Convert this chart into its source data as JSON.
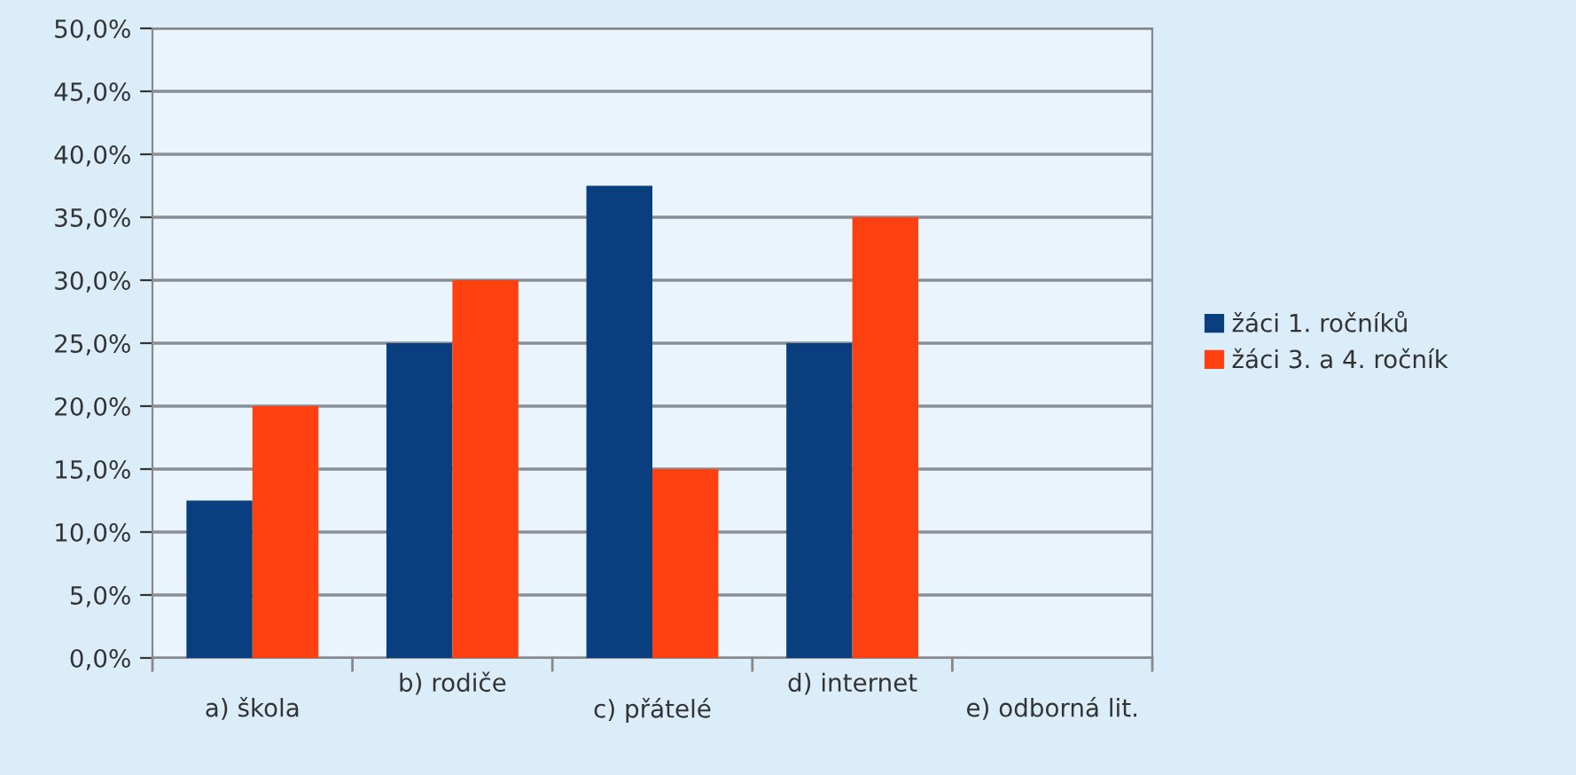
{
  "chart_data": {
    "type": "bar",
    "categories": [
      "a) škola",
      "b) rodiče",
      "c) přátelé",
      "d) internet",
      "e) odborná lit."
    ],
    "series": [
      {
        "name": "žáci 1. ročníků",
        "color": "#0a3f7f",
        "values": [
          12.5,
          25,
          37.5,
          25,
          null
        ]
      },
      {
        "name": "žáci 3. a 4. ročník",
        "color": "#ff4010",
        "values": [
          20,
          30,
          15,
          35,
          null
        ]
      }
    ],
    "ylim": [
      0,
      50
    ],
    "yticks": [
      {
        "value": 0,
        "label": "0,0%"
      },
      {
        "value": 5,
        "label": "5,0%"
      },
      {
        "value": 10,
        "label": "10,0%"
      },
      {
        "value": 15,
        "label": "15,0%"
      },
      {
        "value": 20,
        "label": "20,0%"
      },
      {
        "value": 25,
        "label": "25,0%"
      },
      {
        "value": 30,
        "label": "30,0%"
      },
      {
        "value": 35,
        "label": "35,0%"
      },
      {
        "value": 40,
        "label": "40,0%"
      },
      {
        "value": 45,
        "label": "45,0%"
      },
      {
        "value": 50,
        "label": "50,0%"
      }
    ],
    "grid": "y",
    "legend": "right"
  }
}
